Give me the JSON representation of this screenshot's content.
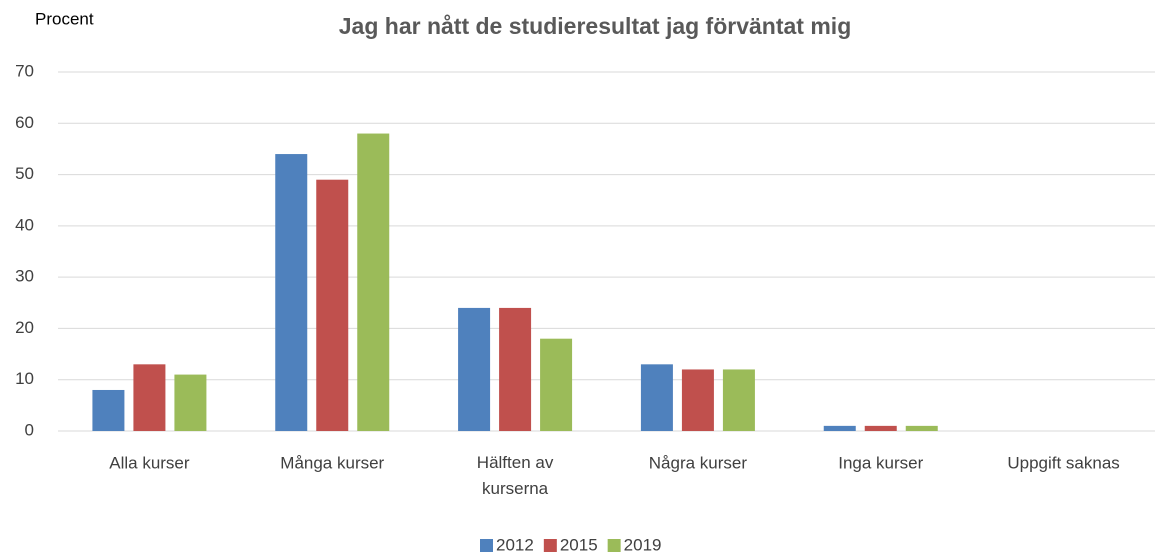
{
  "chart_data": {
    "type": "bar",
    "title": "Jag har nått de studieresultat jag förväntat mig",
    "y_axis_label": "Procent",
    "categories": [
      "Alla kurser",
      "Många kurser",
      "Hälften av kurserna",
      "Några kurser",
      "Inga kurser",
      "Uppgift saknas"
    ],
    "series": [
      {
        "name": "2012",
        "color": "#4f81bd",
        "values": [
          8,
          54,
          24,
          13,
          1,
          0
        ]
      },
      {
        "name": "2015",
        "color": "#c0504d",
        "values": [
          13,
          49,
          24,
          12,
          1,
          0
        ]
      },
      {
        "name": "2019",
        "color": "#9bbb59",
        "values": [
          11,
          58,
          18,
          12,
          1,
          0
        ]
      }
    ],
    "ylim": [
      0,
      70
    ],
    "yticks": [
      0,
      10,
      20,
      30,
      40,
      50,
      60,
      70
    ],
    "grid": true,
    "legend": "bottom"
  }
}
